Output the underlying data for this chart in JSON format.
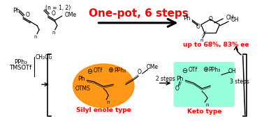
{
  "title_text": "One-pot, 6 steps",
  "title_color": "#FF0000",
  "title_fontsize": 11,
  "subtitle_text": "up to 68%, 83% ee",
  "subtitle_color": "#FF0000",
  "silyl_label": "Silyl enole type",
  "keto_label": "Keto type",
  "label_color": "#FF0000",
  "orange_color": "#FF8C00",
  "teal_color": "#7FFFD4",
  "bg_color": "#FFFFFF",
  "steps_2": "2 steps",
  "steps_3": "3 steps",
  "struct_color": "#000000"
}
